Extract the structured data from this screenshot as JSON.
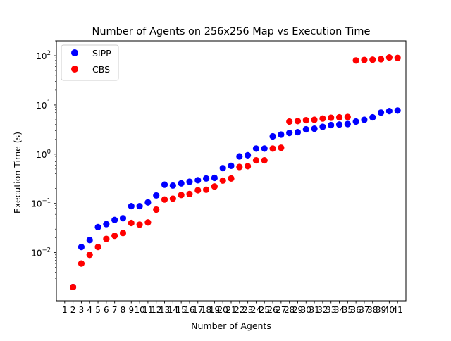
{
  "chart_data": {
    "type": "scatter",
    "title": "Number of Agents on 256x256 Map vs Execution Time",
    "xlabel": "Number of Agents",
    "ylabel": "Execution Time (s)",
    "xlim": [
      0,
      42
    ],
    "ylim": [
      0.00105,
      200
    ],
    "yscale": "log",
    "grid": false,
    "legend_position": "top-left",
    "x_ticks": [
      1,
      2,
      3,
      4,
      5,
      6,
      7,
      8,
      9,
      10,
      11,
      12,
      13,
      14,
      15,
      16,
      17,
      18,
      19,
      20,
      21,
      22,
      23,
      24,
      25,
      26,
      27,
      28,
      29,
      30,
      31,
      32,
      33,
      34,
      35,
      36,
      37,
      38,
      39,
      40,
      41
    ],
    "y_ticks": [
      {
        "value": 0.01,
        "base": "10",
        "exp": "−2"
      },
      {
        "value": 0.1,
        "base": "10",
        "exp": "−1"
      },
      {
        "value": 1,
        "base": "10",
        "exp": "0"
      },
      {
        "value": 10,
        "base": "10",
        "exp": "1"
      },
      {
        "value": 100,
        "base": "10",
        "exp": "2"
      }
    ],
    "series": [
      {
        "name": "SIPP",
        "color": "#0000ff",
        "x": [
          2,
          3,
          4,
          5,
          6,
          7,
          8,
          9,
          10,
          11,
          12,
          13,
          14,
          15,
          16,
          17,
          18,
          19,
          20,
          21,
          22,
          23,
          24,
          25,
          26,
          27,
          28,
          29,
          30,
          31,
          32,
          33,
          34,
          35,
          36,
          37,
          38,
          39,
          40,
          41
        ],
        "y": [
          0.002,
          0.013,
          0.018,
          0.033,
          0.038,
          0.046,
          0.05,
          0.088,
          0.088,
          0.105,
          0.145,
          0.24,
          0.23,
          0.255,
          0.275,
          0.295,
          0.32,
          0.33,
          0.52,
          0.58,
          0.9,
          0.95,
          1.3,
          1.3,
          2.3,
          2.5,
          2.7,
          2.8,
          3.2,
          3.3,
          3.6,
          3.9,
          4.0,
          4.1,
          4.6,
          5.0,
          5.6,
          7.0,
          7.5,
          7.7
        ]
      },
      {
        "name": "CBS",
        "color": "#ff0000",
        "x": [
          2,
          3,
          4,
          5,
          6,
          7,
          8,
          9,
          10,
          11,
          12,
          13,
          14,
          15,
          16,
          17,
          18,
          19,
          20,
          21,
          22,
          23,
          24,
          25,
          26,
          27,
          28,
          29,
          30,
          31,
          32,
          33,
          34,
          35,
          36,
          37,
          38,
          39,
          40,
          41
        ],
        "y": [
          0.002,
          0.006,
          0.009,
          0.013,
          0.019,
          0.022,
          0.025,
          0.04,
          0.037,
          0.041,
          0.075,
          0.12,
          0.125,
          0.148,
          0.155,
          0.185,
          0.19,
          0.22,
          0.29,
          0.32,
          0.55,
          0.57,
          0.75,
          0.75,
          1.3,
          1.35,
          4.6,
          4.7,
          4.9,
          5.0,
          5.3,
          5.5,
          5.6,
          5.7,
          80,
          82,
          83,
          85,
          92,
          90
        ]
      }
    ]
  }
}
